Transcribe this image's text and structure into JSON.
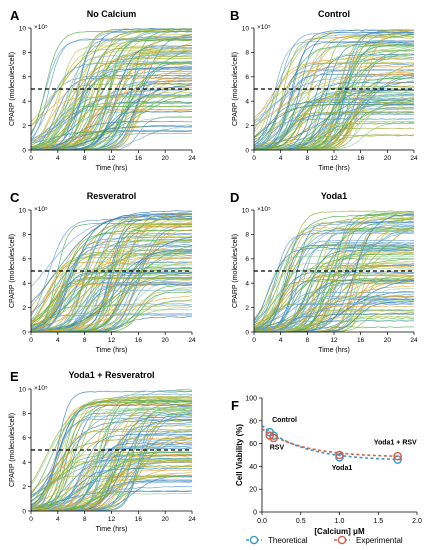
{
  "chart_data": [
    {
      "panel": "A",
      "type": "line",
      "title": "No Calcium",
      "xlabel": "Time (hrs)",
      "ylabel": "CPARP (molecules/cell)",
      "multiplier": "×10⁵",
      "xlim": [
        0,
        24
      ],
      "ylim": [
        0,
        10
      ],
      "xticks": [
        0,
        4,
        8,
        12,
        16,
        20,
        24
      ],
      "yticks": [
        0,
        2,
        4,
        6,
        8,
        10
      ],
      "threshold": 5,
      "ensemble": {
        "count": 110,
        "seed": 11
      },
      "series_colors": [
        "#9aab2a",
        "#b8c240",
        "#6fa8cc",
        "#2f7fb8",
        "#4cae4c",
        "#e8a33c",
        "#8fcf8f",
        "#5a9ad6"
      ]
    },
    {
      "panel": "B",
      "type": "line",
      "title": "Control",
      "xlabel": "Time (hrs)",
      "ylabel": "CPARP (molecules/cell)",
      "multiplier": "×10⁵",
      "xlim": [
        0,
        24
      ],
      "ylim": [
        0,
        10
      ],
      "xticks": [
        0,
        4,
        8,
        12,
        16,
        20,
        24
      ],
      "yticks": [
        0,
        2,
        4,
        6,
        8,
        10
      ],
      "threshold": 5,
      "ensemble": {
        "count": 110,
        "seed": 23
      },
      "series_colors": [
        "#9aab2a",
        "#b8c240",
        "#6fa8cc",
        "#2f7fb8",
        "#4cae4c",
        "#e8a33c",
        "#8fcf8f",
        "#5a9ad6"
      ]
    },
    {
      "panel": "C",
      "type": "line",
      "title": "Resveratrol",
      "xlabel": "Time (hrs)",
      "ylabel": "CPARP (molecules/cell)",
      "multiplier": "×10⁵",
      "xlim": [
        0,
        24
      ],
      "ylim": [
        0,
        10
      ],
      "xticks": [
        0,
        4,
        8,
        12,
        16,
        20,
        24
      ],
      "yticks": [
        0,
        2,
        4,
        6,
        8,
        10
      ],
      "threshold": 5,
      "ensemble": {
        "count": 110,
        "seed": 37
      },
      "series_colors": [
        "#9aab2a",
        "#b8c240",
        "#6fa8cc",
        "#2f7fb8",
        "#4cae4c",
        "#e8a33c",
        "#8fcf8f",
        "#5a9ad6"
      ]
    },
    {
      "panel": "D",
      "type": "line",
      "title": "Yoda1",
      "xlabel": "Time (hrs)",
      "ylabel": "CPARP (molecules/cell)",
      "multiplier": "×10⁵",
      "xlim": [
        0,
        24
      ],
      "ylim": [
        0,
        10
      ],
      "xticks": [
        0,
        4,
        8,
        12,
        16,
        20,
        24
      ],
      "yticks": [
        0,
        2,
        4,
        6,
        8,
        10
      ],
      "threshold": 5,
      "ensemble": {
        "count": 110,
        "seed": 41
      },
      "series_colors": [
        "#9aab2a",
        "#b8c240",
        "#6fa8cc",
        "#2f7fb8",
        "#4cae4c",
        "#e8a33c",
        "#8fcf8f",
        "#5a9ad6"
      ]
    },
    {
      "panel": "E",
      "type": "line",
      "title": "Yoda1 + Resveratrol",
      "xlabel": "Time (hrs)",
      "ylabel": "CPARP (molecules/cell)",
      "multiplier": "×10⁵",
      "xlim": [
        0,
        24
      ],
      "ylim": [
        0,
        10
      ],
      "xticks": [
        0,
        4,
        8,
        12,
        16,
        20,
        24
      ],
      "yticks": [
        0,
        2,
        4,
        6,
        8,
        10
      ],
      "threshold": 5,
      "ensemble": {
        "count": 110,
        "seed": 53
      },
      "series_colors": [
        "#9aab2a",
        "#b8c240",
        "#6fa8cc",
        "#2f7fb8",
        "#4cae4c",
        "#e8a33c",
        "#8fcf8f",
        "#5a9ad6"
      ]
    },
    {
      "panel": "F",
      "type": "scatter",
      "xlabel": "[Calcium] μM",
      "ylabel": "Cell Viability (%)",
      "xlim": [
        0,
        2.0
      ],
      "ylim": [
        0,
        100
      ],
      "xticks": [
        "0.0",
        "0.5",
        "1.0",
        "1.5",
        "2.0"
      ],
      "yticks": [
        "0",
        "20",
        "40",
        "60",
        "80",
        "100"
      ],
      "series": [
        {
          "name": "Theoretical",
          "color": "#3a9ac4",
          "x": [
            0.1,
            0.15,
            1.0,
            1.75
          ],
          "y": [
            70,
            67,
            48,
            46
          ]
        },
        {
          "name": "Experimental",
          "color": "#d4604c",
          "x": [
            0.1,
            0.15,
            1.0,
            1.75
          ],
          "y": [
            67,
            65,
            50,
            49
          ]
        }
      ],
      "annotations": [
        {
          "text": "Control",
          "x": 0.13,
          "y": 79
        },
        {
          "text": "RSV",
          "x": 0.1,
          "y": 55
        },
        {
          "text": "Yoda1",
          "x": 0.9,
          "y": 37
        },
        {
          "text": "Yoda1 + RSV",
          "x": 1.72,
          "y": 59
        }
      ],
      "legend_position": "bottom"
    }
  ]
}
